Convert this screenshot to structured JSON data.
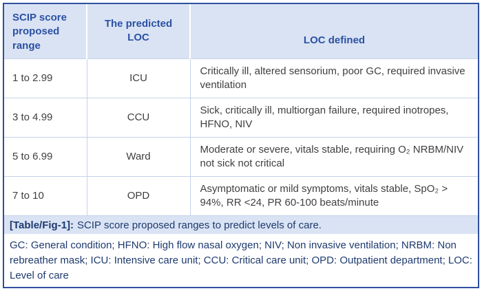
{
  "colors": {
    "border": "#2f4f9e",
    "header_bg": "#dae3f4",
    "header_text": "#2b51a3",
    "body_text": "#3f3f3f",
    "caption_bg": "#dae3f4",
    "caption_text": "#1e3a6e",
    "grid": "#c6d2e8"
  },
  "table": {
    "headers": [
      "SCIP score proposed range",
      "The predicted LOC",
      "LOC defined"
    ],
    "rows": [
      {
        "range": "1 to 2.99",
        "loc": "ICU",
        "definition": "Critically ill, altered sensorium, poor GC, required invasive ventilation"
      },
      {
        "range": "3 to 4.99",
        "loc": "CCU",
        "definition": "Sick, critically ill, multiorgan failure, required inotropes, HFNO, NIV"
      },
      {
        "range": "5 to 6.99",
        "loc": "Ward",
        "definition": "Moderate or severe, vitals stable, requiring O₂ NRBM/NIV not sick not critical"
      },
      {
        "range": "7 to 10",
        "loc": "OPD",
        "definition": "Asymptomatic or mild symptoms, vitals stable, SpO₂ > 94%, RR <24, PR 60-100 beats/minute"
      }
    ]
  },
  "caption": {
    "label": "[Table/Fig-1]:",
    "text": "SCIP score proposed ranges to predict levels of care."
  },
  "footnote": "GC: General condition; HFNO: High flow nasal oxygen; NIV; Non invasive ventilation; NRBM: Non rebreather mask; ICU: Intensive care unit; CCU: Critical care unit; OPD: Outpatient department; LOC: Level of care"
}
